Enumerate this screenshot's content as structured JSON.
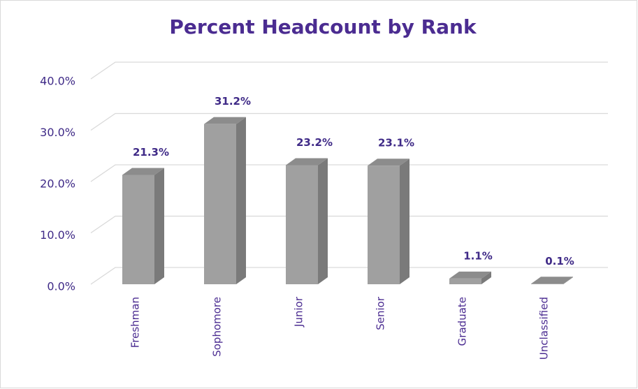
{
  "chart_data": {
    "type": "bar3d",
    "title": "Percent Headcount by Rank",
    "categories": [
      "Freshman",
      "Sophomore",
      "Junior",
      "Senior",
      "Graduate",
      "Unclassified"
    ],
    "values": [
      21.3,
      31.2,
      23.2,
      23.1,
      1.1,
      0.1
    ],
    "value_labels": [
      "21.3%",
      "31.2%",
      "23.2%",
      "23.1%",
      "1.1%",
      "0.1%"
    ],
    "color": "#a0a0a0",
    "ylim": [
      0,
      40
    ],
    "yticks": [
      {
        "value": 0,
        "label": "0.0%"
      },
      {
        "value": 10,
        "label": "10.0%"
      },
      {
        "value": 20,
        "label": "20.0%"
      },
      {
        "value": 30,
        "label": "30.0%"
      },
      {
        "value": 40,
        "label": "40.0%"
      }
    ],
    "grid": true
  }
}
